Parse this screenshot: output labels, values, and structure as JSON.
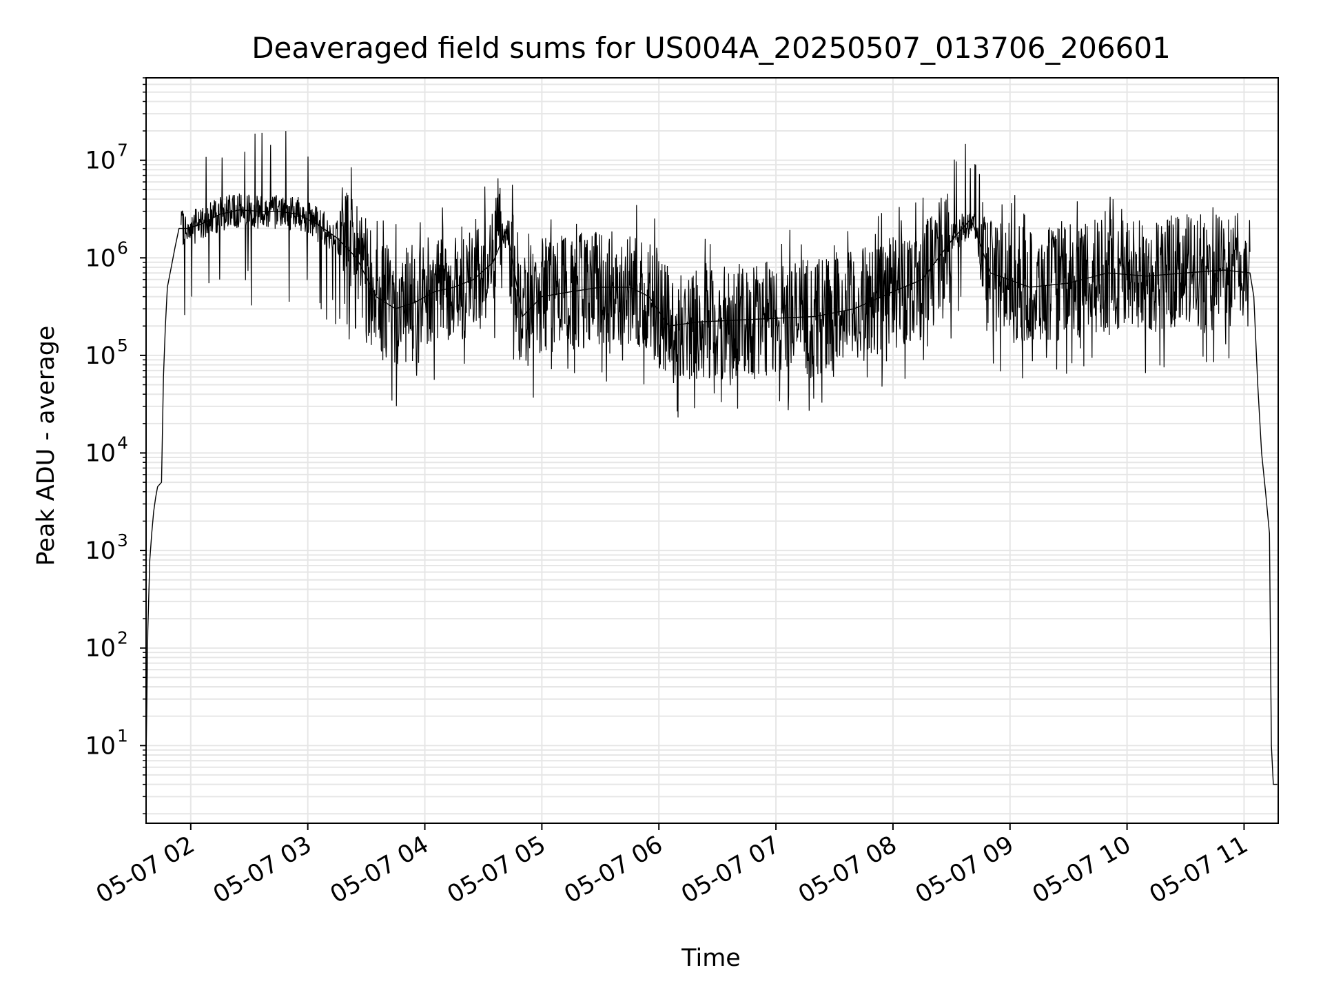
{
  "chart_data": {
    "type": "line",
    "title": "Deaveraged field sums for US004A_20250507_013706_206601",
    "xlabel": "Time",
    "ylabel": "Peak ADU - average",
    "y_scale": "log",
    "ylim": [
      1.6,
      70000000
    ],
    "xlim": [
      "2025-05-07 01:37:06",
      "2025-05-07 11:17:30"
    ],
    "grid": true,
    "grid_color": "#e6e6e6",
    "line_color": "#000000",
    "x_ticks": [
      {
        "t": "2025-05-07 02:00",
        "label": "05-07 02"
      },
      {
        "t": "2025-05-07 03:00",
        "label": "05-07 03"
      },
      {
        "t": "2025-05-07 04:00",
        "label": "05-07 04"
      },
      {
        "t": "2025-05-07 05:00",
        "label": "05-07 05"
      },
      {
        "t": "2025-05-07 06:00",
        "label": "05-07 06"
      },
      {
        "t": "2025-05-07 07:00",
        "label": "05-07 07"
      },
      {
        "t": "2025-05-07 08:00",
        "label": "05-07 08"
      },
      {
        "t": "2025-05-07 09:00",
        "label": "05-07 09"
      },
      {
        "t": "2025-05-07 10:00",
        "label": "05-07 10"
      },
      {
        "t": "2025-05-07 11:00",
        "label": "05-07 11"
      }
    ],
    "y_ticks": [
      {
        "value": 10,
        "base": "10",
        "exp": "1"
      },
      {
        "value": 100,
        "base": "10",
        "exp": "2"
      },
      {
        "value": 1000,
        "base": "10",
        "exp": "3"
      },
      {
        "value": 10000,
        "base": "10",
        "exp": "4"
      },
      {
        "value": 100000,
        "base": "10",
        "exp": "5"
      },
      {
        "value": 1000000,
        "base": "10",
        "exp": "6"
      },
      {
        "value": 10000000,
        "base": "10",
        "exp": "7"
      }
    ],
    "series": [
      {
        "points": [
          [
            "2025-05-07 01:37",
            5
          ],
          [
            "2025-05-07 01:38",
            150
          ],
          [
            "2025-05-07 01:39",
            800
          ],
          [
            "2025-05-07 01:40",
            1500
          ],
          [
            "2025-05-07 01:41",
            2500
          ],
          [
            "2025-05-07 01:42",
            3500
          ],
          [
            "2025-05-07 01:43",
            4500
          ],
          [
            "2025-05-07 01:45",
            5000
          ],
          [
            "2025-05-07 01:46",
            60000
          ],
          [
            "2025-05-07 01:47",
            200000
          ],
          [
            "2025-05-07 01:48",
            500000
          ],
          [
            "2025-05-07 01:50",
            800000
          ],
          [
            "2025-05-07 01:52",
            1300000
          ],
          [
            "2025-05-07 01:54",
            2000000
          ],
          [
            "2025-05-07 01:58",
            2000000
          ],
          [
            "2025-05-07 02:05",
            2200000
          ],
          [
            "2025-05-07 02:15",
            2800000
          ],
          [
            "2025-05-07 02:25",
            3100000
          ],
          [
            "2025-05-07 02:35",
            3000000
          ],
          [
            "2025-05-07 02:45",
            3000000
          ],
          [
            "2025-05-07 02:55",
            2800000
          ],
          [
            "2025-05-07 03:05",
            2200000
          ],
          [
            "2025-05-07 03:15",
            1600000
          ],
          [
            "2025-05-07 03:25",
            1000000
          ],
          [
            "2025-05-07 03:35",
            400000
          ],
          [
            "2025-05-07 03:45",
            300000
          ],
          [
            "2025-05-07 03:55",
            350000
          ],
          [
            "2025-05-07 04:05",
            450000
          ],
          [
            "2025-05-07 04:15",
            500000
          ],
          [
            "2025-05-07 04:25",
            600000
          ],
          [
            "2025-05-07 04:35",
            900000
          ],
          [
            "2025-05-07 04:42",
            2000000
          ],
          [
            "2025-05-07 04:50",
            250000
          ],
          [
            "2025-05-07 05:00",
            400000
          ],
          [
            "2025-05-07 05:15",
            450000
          ],
          [
            "2025-05-07 05:30",
            500000
          ],
          [
            "2025-05-07 05:45",
            500000
          ],
          [
            "2025-05-07 05:55",
            400000
          ],
          [
            "2025-05-07 06:05",
            200000
          ],
          [
            "2025-05-07 06:20",
            220000
          ],
          [
            "2025-05-07 06:40",
            230000
          ],
          [
            "2025-05-07 07:00",
            240000
          ],
          [
            "2025-05-07 07:20",
            250000
          ],
          [
            "2025-05-07 07:40",
            300000
          ],
          [
            "2025-05-07 08:00",
            450000
          ],
          [
            "2025-05-07 08:15",
            600000
          ],
          [
            "2025-05-07 08:30",
            1500000
          ],
          [
            "2025-05-07 08:40",
            2500000
          ],
          [
            "2025-05-07 08:50",
            700000
          ],
          [
            "2025-05-07 09:10",
            500000
          ],
          [
            "2025-05-07 09:30",
            550000
          ],
          [
            "2025-05-07 09:50",
            700000
          ],
          [
            "2025-05-07 10:10",
            650000
          ],
          [
            "2025-05-07 10:30",
            700000
          ],
          [
            "2025-05-07 10:50",
            750000
          ],
          [
            "2025-05-07 11:03",
            700000
          ],
          [
            "2025-05-07 11:05",
            400000
          ],
          [
            "2025-05-07 11:07",
            50000
          ],
          [
            "2025-05-07 11:09",
            10000
          ],
          [
            "2025-05-07 11:11",
            4000
          ],
          [
            "2025-05-07 11:13",
            1500
          ],
          [
            "2025-05-07 11:14",
            10
          ],
          [
            "2025-05-07 11:15",
            4
          ],
          [
            "2025-05-07 11:17",
            4
          ]
        ]
      }
    ]
  }
}
